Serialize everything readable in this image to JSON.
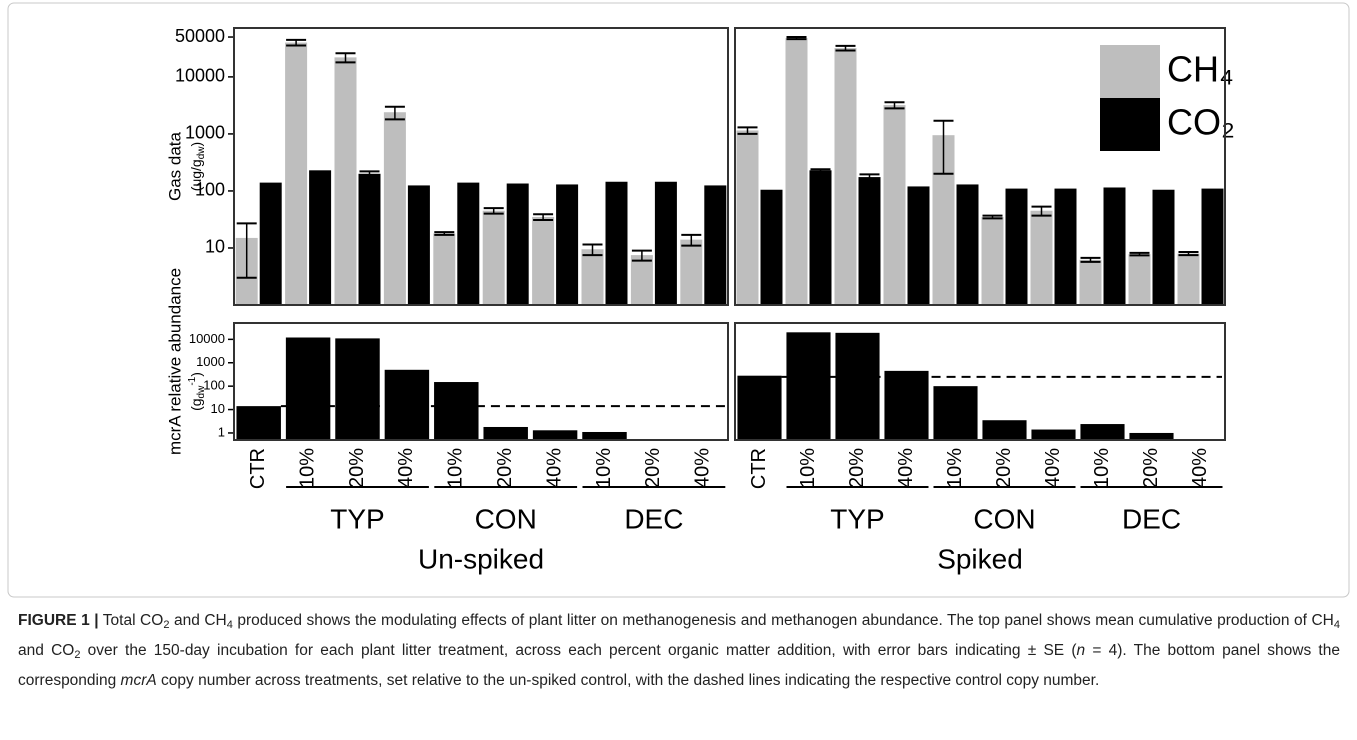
{
  "chart_data": [
    {
      "type": "bar",
      "log_scale": true,
      "ylim": [
        1,
        72000
      ],
      "yticks": [
        10,
        100,
        1000,
        10000,
        50000
      ],
      "ylabel": [
        "Gas data",
        "(ug/g",
        "dw",
        ")"
      ],
      "series": [
        {
          "color": "#bebebe",
          "values": [
            15,
            40000,
            22000,
            2400,
            18,
            45,
            35,
            9.5,
            7.5,
            14
          ],
          "errors": [
            12,
            4500,
            4000,
            600,
            1,
            5,
            4,
            2,
            1.5,
            3
          ]
        },
        {
          "color": "#000000",
          "values": [
            140,
            230,
            200,
            125,
            140,
            135,
            130,
            145,
            145,
            125
          ],
          "errors": [
            null,
            null,
            20,
            null,
            null,
            null,
            null,
            null,
            null,
            null
          ]
        }
      ]
    },
    {
      "type": "bar",
      "log_scale": true,
      "ylim": [
        1,
        72000
      ],
      "legend": "top-right",
      "series": [
        {
          "name": "CH₄",
          "color": "#bebebe",
          "values": [
            1150,
            48000,
            32000,
            3200,
            950,
            35,
            45,
            6.2,
            7.8,
            8
          ],
          "errors": [
            150,
            2000,
            3000,
            400,
            750,
            2,
            8,
            0.5,
            0.4,
            0.5
          ]
        },
        {
          "name": "CO₂",
          "color": "#000000",
          "values": [
            105,
            230,
            175,
            120,
            130,
            110,
            110,
            115,
            105,
            110
          ],
          "errors": [
            null,
            10,
            20,
            null,
            null,
            null,
            null,
            null,
            null,
            null
          ]
        }
      ]
    },
    {
      "type": "bar",
      "log_scale": true,
      "ylim": [
        0.5,
        50000
      ],
      "yticks": [
        1,
        10,
        100,
        1000,
        10000
      ],
      "ylabel": [
        "mcrA relative abundance",
        "(g",
        "dw",
        "-1",
        ")"
      ],
      "categories": [
        "CTR",
        "10%",
        "20%",
        "40%",
        "10%",
        "20%",
        "40%",
        "10%",
        "20%",
        "40%"
      ],
      "values": [
        14,
        12000,
        11000,
        500,
        150,
        1.8,
        1.3,
        1.1,
        null,
        null
      ],
      "color": "#000000",
      "reference_line": 14,
      "groups": [
        "TYP",
        "CON",
        "DEC"
      ],
      "subtitle": "Un-spiked"
    },
    {
      "type": "bar",
      "log_scale": true,
      "ylim": [
        0.5,
        50000
      ],
      "categories": [
        "CTR",
        "10%",
        "20%",
        "40%",
        "10%",
        "20%",
        "40%",
        "10%",
        "20%",
        "40%"
      ],
      "values": [
        280,
        20000,
        19000,
        450,
        100,
        3.5,
        1.4,
        2.4,
        1.0,
        null
      ],
      "color": "#000000",
      "reference_line": 250,
      "groups": [
        "TYP",
        "CON",
        "DEC"
      ],
      "subtitle": "Spiked"
    }
  ],
  "caption": {
    "label": "FIGURE 1 |",
    "parts": [
      " Total CO",
      "2",
      " and CH",
      "4",
      " produced shows the modulating effects of plant litter on methanogenesis and methanogen abundance. The top panel shows mean cumulative production of CH",
      "4",
      " and CO",
      "2",
      " over the 150-day incubation for each plant litter treatment, across each percent organic matter addition, with error bars indicating ± SE (",
      "n",
      " = 4). The bottom panel shows the corresponding ",
      "mcrA",
      " copy number across treatments, set relative to the un-spiked control, with the dashed lines indicating the respective control copy number."
    ]
  }
}
